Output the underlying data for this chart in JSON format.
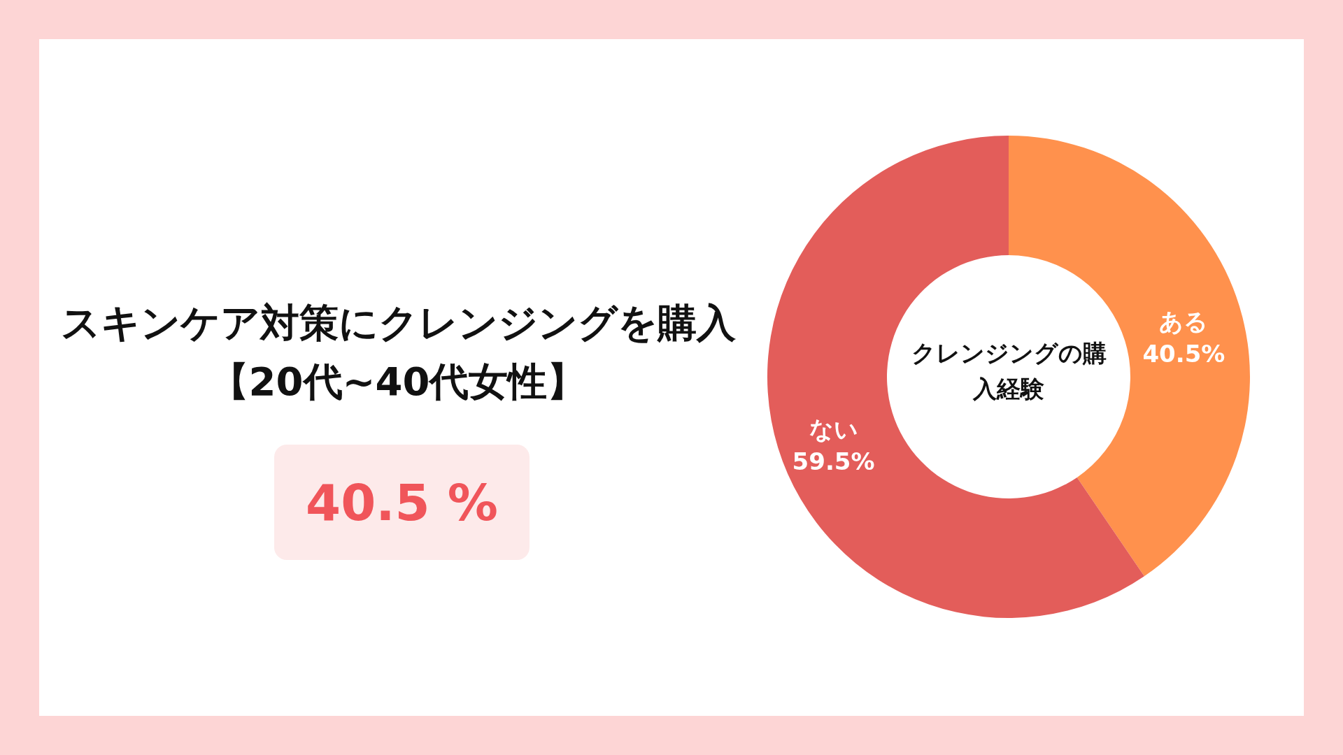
{
  "chart_data": {
    "type": "donut",
    "title": "スキンケア対策にクレンジングを購入【20代~40代女性】",
    "categories": [
      "ある",
      "ない"
    ],
    "values": [
      40.5,
      59.5
    ],
    "colors": [
      "#ff914d",
      "#e35d5a"
    ],
    "value_labels": [
      "40.5%",
      "59.5%"
    ],
    "annotations": [
      "クレンジングの購入経験",
      "40.5 %"
    ]
  }
}
